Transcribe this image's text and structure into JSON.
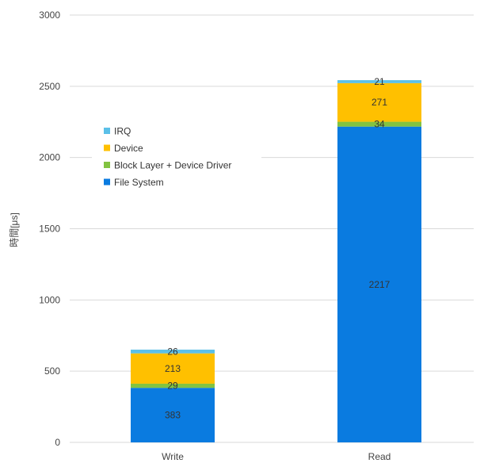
{
  "chart_data": {
    "type": "bar",
    "stacked": true,
    "categories": [
      "Write",
      "Read"
    ],
    "ylabel": "時間[μs]",
    "ylim": [
      0,
      3000
    ],
    "yticks": [
      0,
      500,
      1000,
      1500,
      2000,
      2500,
      3000
    ],
    "grid": true,
    "legend_position": "upper-left",
    "series": [
      {
        "name": "File System",
        "color": "#0A7BE0",
        "values": [
          383,
          2217
        ]
      },
      {
        "name": "Block Layer + Device Driver",
        "color": "#82C341",
        "values": [
          29,
          34
        ]
      },
      {
        "name": "Device",
        "color": "#FFC000",
        "values": [
          213,
          271
        ]
      },
      {
        "name": "IRQ",
        "color": "#5BC0E8",
        "values": [
          26,
          21
        ]
      }
    ],
    "legend_order": [
      "IRQ",
      "Device",
      "Block Layer + Device Driver",
      "File System"
    ]
  }
}
